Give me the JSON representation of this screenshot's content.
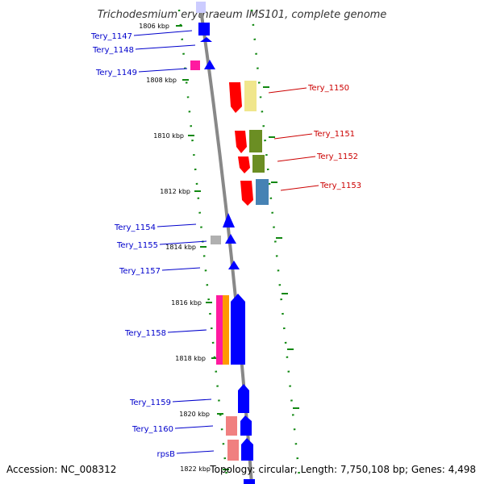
{
  "title": "Trichodesmium erythraeum IMS101, complete genome",
  "footer": {
    "accession": "Accession: NC_008312",
    "topology": "Topology: circular; Length: 7,750,108 bp; Genes: 4,498"
  },
  "kbp_labels": [
    "1806 kbp",
    "1808 kbp",
    "1810 kbp",
    "1812 kbp",
    "1814 kbp",
    "1816 kbp",
    "1818 kbp",
    "1820 kbp",
    "1822 kbp"
  ],
  "genes_left": [
    {
      "label": "Tery_1147",
      "color": "#0000cc"
    },
    {
      "label": "Tery_1148",
      "color": "#0000cc"
    },
    {
      "label": "Tery_1149",
      "color": "#0000cc"
    },
    {
      "label": "Tery_1154",
      "color": "#0000cc"
    },
    {
      "label": "Tery_1155",
      "color": "#0000cc"
    },
    {
      "label": "Tery_1157",
      "color": "#0000cc"
    },
    {
      "label": "Tery_1158",
      "color": "#0000cc"
    },
    {
      "label": "Tery_1159",
      "color": "#0000cc"
    },
    {
      "label": "Tery_1160",
      "color": "#0000cc"
    },
    {
      "label": "rpsB",
      "color": "#0000cc"
    }
  ],
  "genes_right": [
    {
      "label": "Tery_1150",
      "color": "#cc0000"
    },
    {
      "label": "Tery_1151",
      "color": "#cc0000"
    },
    {
      "label": "Tery_1152",
      "color": "#cc0000"
    },
    {
      "label": "Tery_1153",
      "color": "#cc0000"
    }
  ],
  "colors": {
    "backbone": "#888888",
    "track_dots": "#118811",
    "blue": "#0000ff",
    "red": "#ff0000",
    "magenta": "#ff1aa0",
    "green": "#6b8e23",
    "yellow": "#f0e68c",
    "steel": "#4682b4",
    "gray": "#b0b0b0",
    "pink": "#f08080",
    "orange": "#ff9900"
  }
}
